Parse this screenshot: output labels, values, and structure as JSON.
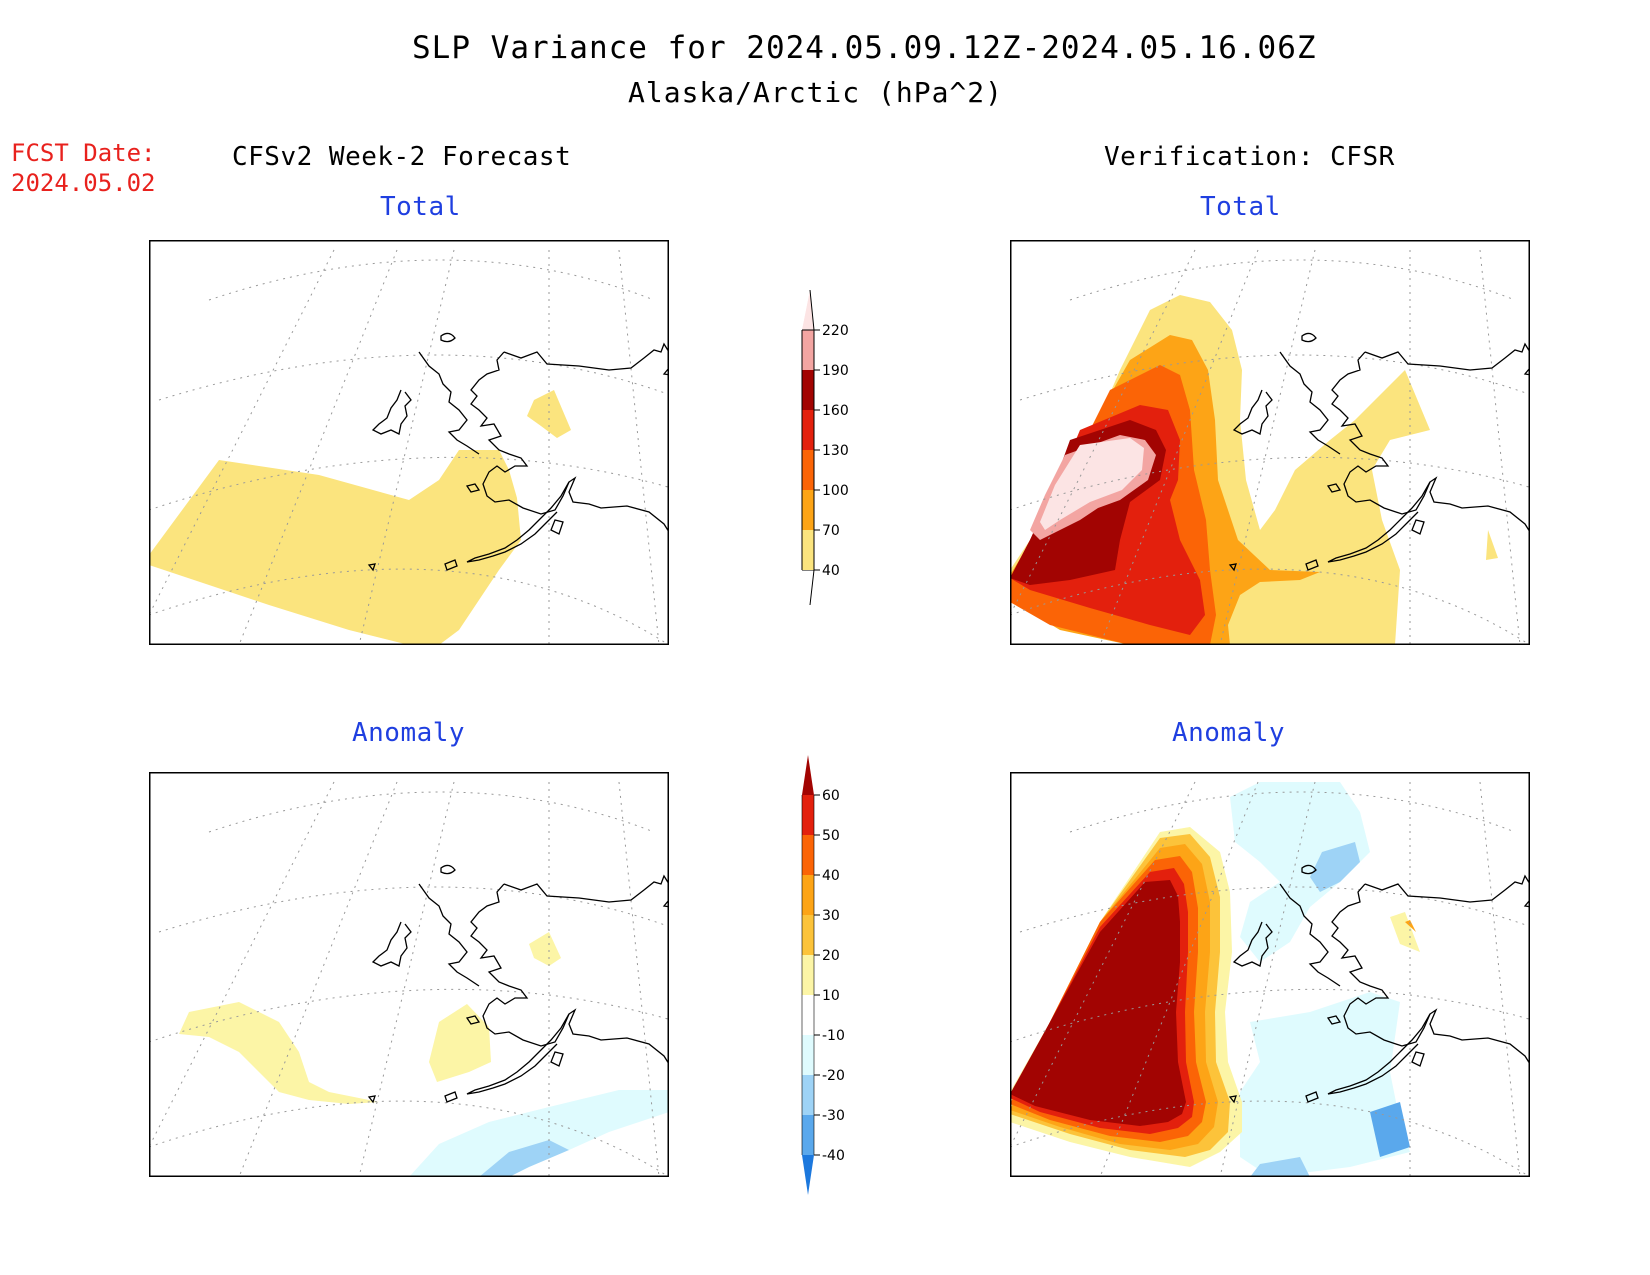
{
  "title": "SLP Variance for 2024.05.09.12Z-2024.05.16.06Z",
  "subtitle": "Alaska/Arctic (hPa^2)",
  "fcst_label": "FCST Date:",
  "fcst_date": "2024.05.02",
  "left_header": "CFSv2 Week-2 Forecast",
  "right_header": "Verification: CFSR",
  "panels": {
    "forecast_total": {
      "title": "Total"
    },
    "verification_total": {
      "title": "Total"
    },
    "forecast_anomaly": {
      "title": "Anomaly"
    },
    "verification_anomaly": {
      "title": "Anomaly"
    }
  },
  "colorbar_total": {
    "levels": [
      "40",
      "70",
      "100",
      "130",
      "160",
      "190",
      "220"
    ],
    "colors": [
      "#fbe47e",
      "#fda416",
      "#fb6406",
      "#e3200d",
      "#a20402",
      "#f3a5a2",
      "#fce4e4"
    ]
  },
  "colorbar_anomaly": {
    "levels": [
      "60",
      "50",
      "40",
      "30",
      "20",
      "10",
      "-10",
      "-20",
      "-30",
      "-40"
    ],
    "colors": [
      "#a20402",
      "#e3200d",
      "#fb6406",
      "#fda416",
      "#fcc33a",
      "#fcf5a6",
      "#ffffff",
      "#dffbfe",
      "#9ed3f6",
      "#5aa8ec",
      "#1c78dd"
    ]
  }
}
